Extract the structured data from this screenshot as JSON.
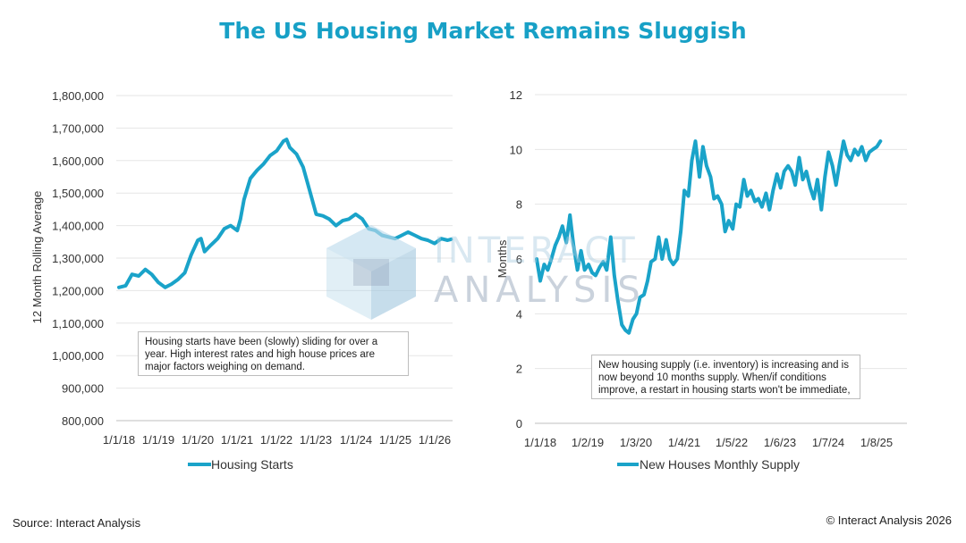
{
  "title": "The US Housing Market Remains Sluggish",
  "source": "Source: Interact Analysis",
  "copyright": "© Interact Analysis 2026",
  "watermark": {
    "line1": "INTERACT",
    "line2": "ANALYSIS"
  },
  "colors": {
    "series": "#1aa3c9",
    "title": "#17a0c6"
  },
  "chart_data": [
    {
      "type": "line",
      "title": "",
      "xlabel": "",
      "ylabel": "12 Month Rolling Average",
      "ylim": [
        800000,
        1800000
      ],
      "yticks": [
        800000,
        900000,
        1000000,
        1100000,
        1200000,
        1300000,
        1400000,
        1500000,
        1600000,
        1700000,
        1800000
      ],
      "ytick_labels": [
        "800,000",
        "900,000",
        "1,000,000",
        "1,100,000",
        "1,200,000",
        "1,300,000",
        "1,400,000",
        "1,500,000",
        "1,600,000",
        "1,700,000",
        "1,800,000"
      ],
      "xticks": [
        "1/1/18",
        "1/1/19",
        "1/1/20",
        "1/1/21",
        "1/1/22",
        "1/1/23",
        "1/1/24",
        "1/1/25",
        "1/1/26"
      ],
      "grid": true,
      "legend": "bottom",
      "series": [
        {
          "name": "Housing Starts",
          "x": [
            2018.0,
            2018.17,
            2018.33,
            2018.5,
            2018.67,
            2018.83,
            2019.0,
            2019.17,
            2019.33,
            2019.5,
            2019.67,
            2019.83,
            2020.0,
            2020.08,
            2020.17,
            2020.33,
            2020.5,
            2020.67,
            2020.83,
            2021.0,
            2021.08,
            2021.17,
            2021.33,
            2021.5,
            2021.67,
            2021.83,
            2022.0,
            2022.17,
            2022.25,
            2022.33,
            2022.5,
            2022.67,
            2022.83,
            2023.0,
            2023.17,
            2023.33,
            2023.5,
            2023.67,
            2023.83,
            2024.0,
            2024.17,
            2024.33,
            2024.5,
            2024.67,
            2024.83,
            2025.0,
            2025.17,
            2025.33,
            2025.5,
            2025.67,
            2025.83,
            2026.0,
            2026.17,
            2026.33,
            2026.42
          ],
          "values": [
            1210000,
            1215000,
            1250000,
            1245000,
            1265000,
            1250000,
            1225000,
            1210000,
            1220000,
            1235000,
            1255000,
            1310000,
            1355000,
            1360000,
            1320000,
            1340000,
            1360000,
            1390000,
            1400000,
            1385000,
            1420000,
            1480000,
            1545000,
            1570000,
            1590000,
            1615000,
            1630000,
            1660000,
            1665000,
            1640000,
            1620000,
            1580000,
            1510000,
            1435000,
            1430000,
            1420000,
            1400000,
            1415000,
            1420000,
            1435000,
            1420000,
            1390000,
            1385000,
            1370000,
            1365000,
            1360000,
            1370000,
            1380000,
            1370000,
            1360000,
            1355000,
            1345000,
            1360000,
            1355000,
            1358000
          ]
        }
      ],
      "annotation": "Housing starts have been (slowly) sliding for over a year. High interest rates and high house prices are major factors weighing on demand."
    },
    {
      "type": "line",
      "title": "",
      "xlabel": "",
      "ylabel": "Months",
      "ylim": [
        0,
        12
      ],
      "yticks": [
        0,
        2,
        4,
        6,
        8,
        10,
        12
      ],
      "ytick_labels": [
        "0",
        "2",
        "4",
        "6",
        "8",
        "10",
        "12"
      ],
      "xticks": [
        "1/1/18",
        "1/2/19",
        "1/3/20",
        "1/4/21",
        "1/5/22",
        "1/6/23",
        "1/7/24",
        "1/8/25"
      ],
      "grid": true,
      "legend": "bottom",
      "series": [
        {
          "name": "New Houses Monthly Supply",
          "x": [
            2018.0,
            2018.08,
            2018.17,
            2018.25,
            2018.33,
            2018.42,
            2018.5,
            2018.58,
            2018.67,
            2018.75,
            2018.83,
            2018.92,
            2019.0,
            2019.08,
            2019.17,
            2019.25,
            2019.33,
            2019.42,
            2019.5,
            2019.58,
            2019.67,
            2019.75,
            2019.83,
            2019.92,
            2020.0,
            2020.08,
            2020.17,
            2020.25,
            2020.33,
            2020.42,
            2020.5,
            2020.58,
            2020.67,
            2020.75,
            2020.83,
            2020.92,
            2021.0,
            2021.08,
            2021.17,
            2021.25,
            2021.33,
            2021.42,
            2021.5,
            2021.58,
            2021.67,
            2021.75,
            2021.83,
            2021.92,
            2022.0,
            2022.08,
            2022.17,
            2022.25,
            2022.33,
            2022.42,
            2022.5,
            2022.58,
            2022.67,
            2022.75,
            2022.83,
            2022.92,
            2023.0,
            2023.08,
            2023.17,
            2023.25,
            2023.33,
            2023.42,
            2023.5,
            2023.58,
            2023.67,
            2023.75,
            2023.83,
            2023.92,
            2024.0,
            2024.08,
            2024.17,
            2024.25,
            2024.33,
            2024.42,
            2024.5,
            2024.58,
            2024.67,
            2024.75,
            2024.83,
            2024.92,
            2025.0,
            2025.08,
            2025.17,
            2025.25,
            2025.33,
            2025.42,
            2025.5,
            2025.58,
            2025.67,
            2025.75
          ],
          "values": [
            6.0,
            5.2,
            5.8,
            5.6,
            6.0,
            6.5,
            6.8,
            7.2,
            6.6,
            7.6,
            6.5,
            5.6,
            6.3,
            5.6,
            5.8,
            5.5,
            5.4,
            5.7,
            5.9,
            5.6,
            6.8,
            5.4,
            4.5,
            3.6,
            3.4,
            3.3,
            3.8,
            4.0,
            4.6,
            4.7,
            5.2,
            5.9,
            6.0,
            6.8,
            6.0,
            6.7,
            6.0,
            5.8,
            6.0,
            7.0,
            8.5,
            8.3,
            9.6,
            10.3,
            9.0,
            10.1,
            9.4,
            9.0,
            8.2,
            8.3,
            8.0,
            7.0,
            7.4,
            7.1,
            8.0,
            7.9,
            8.9,
            8.3,
            8.5,
            8.1,
            8.2,
            7.9,
            8.4,
            7.8,
            8.5,
            9.1,
            8.6,
            9.2,
            9.4,
            9.2,
            8.7,
            9.7,
            8.9,
            9.2,
            8.6,
            8.2,
            8.9,
            7.8,
            9.0,
            9.9,
            9.4,
            8.7,
            9.5,
            10.3,
            9.8,
            9.6,
            10.0,
            9.8,
            10.1,
            9.6,
            9.9,
            10.0,
            10.1,
            10.3
          ]
        }
      ],
      "annotation": "New housing supply (i.e. inventory) is increasing and is now beyond 10 months supply. When/if conditions improve, a restart in housing starts won't be immediate,"
    }
  ]
}
